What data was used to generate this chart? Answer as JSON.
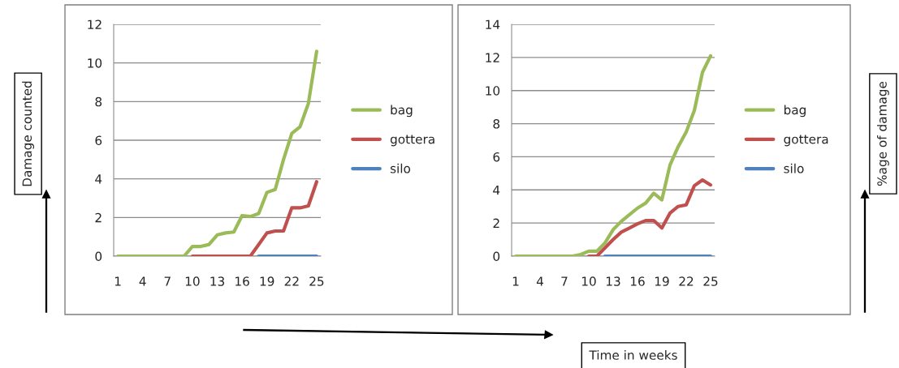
{
  "chart_data": [
    {
      "type": "line",
      "ylabel": "Damage counted",
      "categories": [
        "1",
        null,
        null,
        "4",
        null,
        null,
        "7",
        null,
        null,
        "10",
        null,
        null,
        "13",
        null,
        null,
        "16",
        null,
        null,
        "19",
        null,
        null,
        "22",
        null,
        null,
        "25"
      ],
      "series": [
        {
          "name": "bag",
          "color": "#9bbb59",
          "values": [
            0,
            0,
            0,
            0,
            0,
            0,
            0,
            0,
            0,
            0.5,
            0.5,
            0.6,
            1.1,
            1.2,
            1.25,
            2.1,
            2.05,
            2.2,
            3.3,
            3.45,
            5.0,
            6.35,
            6.7,
            7.9,
            10.6
          ]
        },
        {
          "name": "gottera",
          "color": "#c0504d",
          "values": [
            null,
            null,
            null,
            null,
            null,
            null,
            null,
            null,
            null,
            0,
            0,
            0,
            0,
            0,
            0,
            0,
            0,
            0.6,
            1.2,
            1.3,
            1.3,
            2.5,
            2.5,
            2.6,
            3.85
          ]
        },
        {
          "name": "silo",
          "color": "#4f81bd",
          "values": [
            null,
            null,
            null,
            null,
            null,
            null,
            null,
            null,
            null,
            null,
            null,
            null,
            null,
            null,
            null,
            null,
            null,
            0,
            0,
            0,
            0,
            0,
            0,
            0,
            0
          ]
        }
      ],
      "ylim": [
        0,
        12
      ],
      "yticks": [
        0,
        2,
        4,
        6,
        8,
        10,
        12
      ],
      "grid": "y",
      "legend": "right",
      "marker": "none",
      "line_style": "solid"
    },
    {
      "type": "line",
      "ylabel": "%age of damage",
      "xlabel": "Time in weeks",
      "categories": [
        "1",
        null,
        null,
        "4",
        null,
        null,
        "7",
        null,
        null,
        "10",
        null,
        null,
        "13",
        null,
        null,
        "16",
        null,
        null,
        "19",
        null,
        null,
        "22",
        null,
        null,
        "25"
      ],
      "series": [
        {
          "name": "bag",
          "color": "#9bbb59",
          "values": [
            0,
            0,
            0,
            0,
            0,
            0,
            0,
            0,
            0.1,
            0.3,
            0.3,
            0.8,
            1.6,
            2.1,
            2.5,
            2.9,
            3.2,
            3.8,
            3.4,
            5.5,
            6.6,
            7.5,
            8.8,
            11.1,
            12.1
          ]
        },
        {
          "name": "gottera",
          "color": "#c0504d",
          "values": [
            null,
            null,
            null,
            null,
            null,
            null,
            null,
            null,
            null,
            0,
            0,
            0.5,
            1.0,
            1.45,
            1.7,
            1.95,
            2.15,
            2.15,
            1.7,
            2.6,
            3.0,
            3.1,
            4.25,
            4.6,
            4.3
          ]
        },
        {
          "name": "silo",
          "color": "#4f81bd",
          "values": [
            null,
            null,
            null,
            null,
            null,
            null,
            null,
            null,
            null,
            null,
            null,
            0,
            0,
            0,
            0,
            0,
            0,
            0,
            0,
            0,
            0,
            0,
            0,
            0,
            0
          ]
        }
      ],
      "ylim": [
        0,
        14
      ],
      "yticks": [
        0,
        2,
        4,
        6,
        8,
        10,
        12,
        14
      ],
      "grid": "y",
      "legend": "right",
      "marker": "none",
      "line_style": "solid"
    }
  ]
}
